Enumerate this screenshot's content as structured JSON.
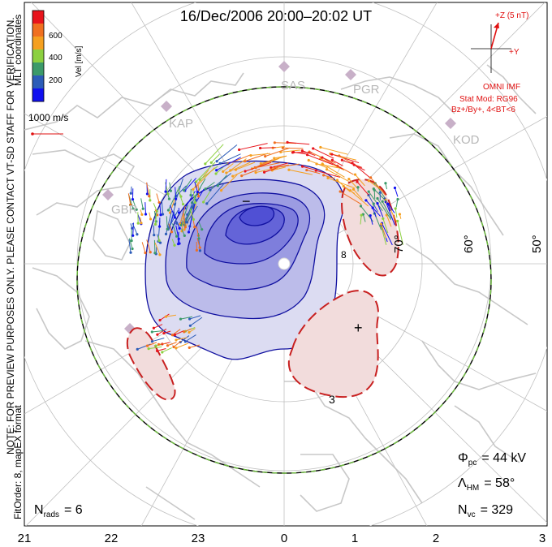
{
  "title": "16/Dec/2006 20:00–20:02 UT",
  "side_note": "NOTE: FOR PREVIEW PURPOSES ONLY. PLEASE CONTACT VT-SD STAFF FOR VERIFICATION.",
  "fit_info": "FitOrder: 8, mapEX format",
  "coords": "MLT coordinates",
  "colorbar": {
    "label": "Vel [m/s]",
    "ticks": [
      "600",
      "400",
      "200"
    ],
    "colors": [
      "#e8141c",
      "#f07020",
      "#f5a020",
      "#8cd040",
      "#3c9a6a",
      "#2c5cb8",
      "#1010f0"
    ]
  },
  "ref_vector": {
    "label": "1000 m/s"
  },
  "imf": {
    "z_label": "+Z (5 nT)",
    "y_label": "+Y",
    "source": "OMNI IMF",
    "model": "Stat Mod: RG96",
    "condition": "Bz+/By+, 4<BT<6"
  },
  "radars": [
    "SAS",
    "PGR",
    "KAP",
    "KOD",
    "GBR"
  ],
  "latitudes": [
    "70°",
    "60°",
    "50°"
  ],
  "mlt_ticks": [
    "21",
    "22",
    "23",
    "0",
    "1",
    "2",
    "3"
  ],
  "stats": {
    "phi_pc_sym": "Φ",
    "phi_pc_sub": "pc",
    "phi_pc_val": "= 44 kV",
    "lambda_sym": "Λ",
    "lambda_sub": "HM",
    "lambda_val": "= 58°",
    "nvc_sym": "N",
    "nvc_sub": "vc",
    "nvc_val": "= 329",
    "nrads_sym": "N",
    "nrads_sub": "rads",
    "nrads_val": "= 6"
  },
  "contour_labels": [
    "−",
    "+",
    "3",
    "8"
  ],
  "colors": {
    "neg_cell": "#3030c0",
    "pos_cell": "#d02020",
    "heppner_boundary": "#70c040",
    "land": "#c8c8c8"
  }
}
